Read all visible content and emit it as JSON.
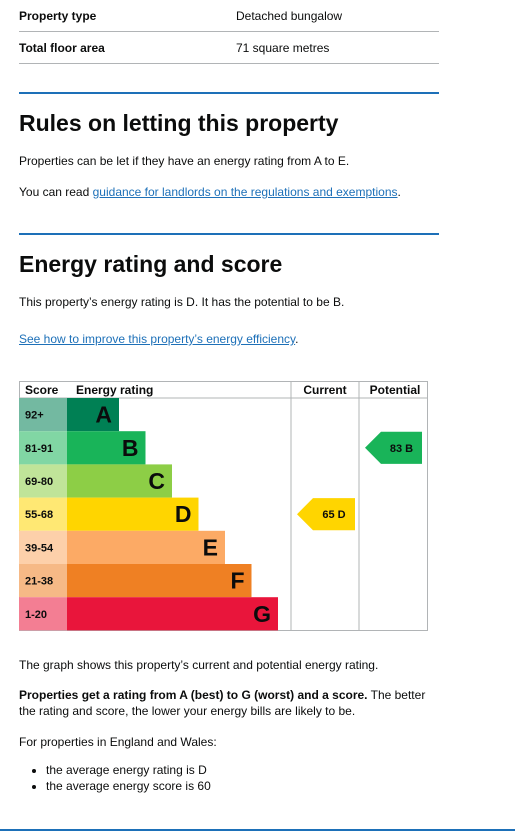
{
  "summary": {
    "rows": [
      {
        "key": "Property type",
        "value": "Detached bungalow"
      },
      {
        "key": "Total floor area",
        "value": "71 square metres"
      }
    ]
  },
  "letting": {
    "heading": "Rules on letting this property",
    "text": "Properties can be let if they have an energy rating from A to E.",
    "read_prefix": "You can read ",
    "link": "guidance for landlords on the regulations and exemptions",
    "read_suffix": "."
  },
  "energy": {
    "heading": "Energy rating and score",
    "summary": "This property’s energy rating is D. It has the potential to be B.",
    "improve_link": "See how to improve this property’s energy efficiency",
    "improve_suffix": "."
  },
  "chart": {
    "headers": {
      "score": "Score",
      "rating": "Energy rating",
      "current": "Current",
      "potential": "Potential"
    },
    "bands": [
      {
        "score": "92+",
        "letter": "A",
        "color": "#008054"
      },
      {
        "score": "81-91",
        "letter": "B",
        "color": "#19b459"
      },
      {
        "score": "69-80",
        "letter": "C",
        "color": "#8dce46"
      },
      {
        "score": "55-68",
        "letter": "D",
        "color": "#ffd500"
      },
      {
        "score": "39-54",
        "letter": "E",
        "color": "#fcaa65"
      },
      {
        "score": "21-38",
        "letter": "F",
        "color": "#ef8023"
      },
      {
        "score": "1-20",
        "letter": "G",
        "color": "#e9153b"
      }
    ],
    "current": {
      "label": "65 D",
      "score": 65,
      "band_index": 3,
      "color": "#ffd500"
    },
    "potential": {
      "label": "83 B",
      "score": 83,
      "band_index": 1,
      "color": "#19b459"
    }
  },
  "info": {
    "graph_text": "The graph shows this property’s current and potential energy rating.",
    "bold_text": "Properties get a rating from A (best) to G (worst) and a score.",
    "rest_text": " The better the rating and score, the lower your energy bills are likely to be.",
    "region_text": "For properties in England and Wales:",
    "bullets": [
      "the average energy rating is D",
      "the average energy score is 60"
    ]
  }
}
